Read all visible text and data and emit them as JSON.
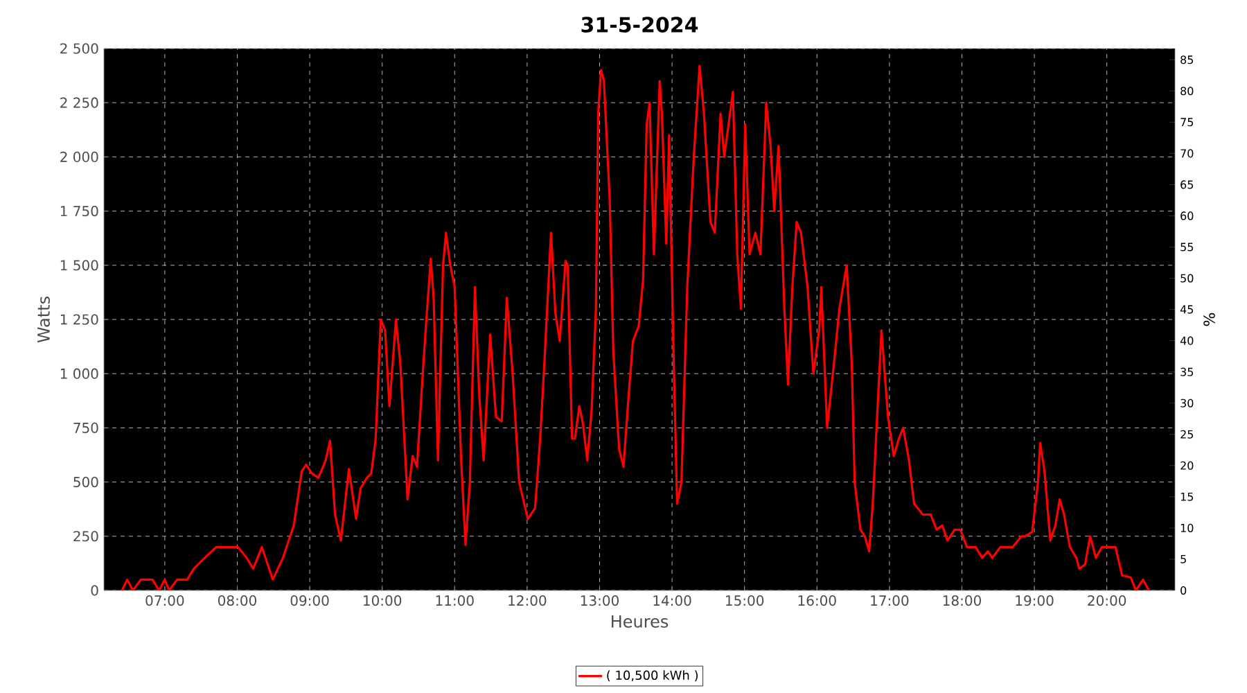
{
  "chart_data": {
    "type": "line",
    "title": "31-5-2024",
    "xlabel": "Heures",
    "ylabel": "Watts",
    "y2label": "%",
    "x": [
      6.41,
      6.48,
      6.56,
      6.67,
      6.83,
      6.92,
      7.0,
      7.06,
      7.17,
      7.31,
      7.4,
      7.55,
      7.71,
      7.88,
      8.01,
      8.13,
      8.22,
      8.34,
      8.49,
      8.63,
      8.78,
      8.89,
      8.95,
      9.03,
      9.12,
      9.22,
      9.28,
      9.35,
      9.43,
      9.54,
      9.64,
      9.7,
      9.79,
      9.85,
      9.91,
      9.98,
      10.04,
      10.1,
      10.19,
      10.25,
      10.35,
      10.42,
      10.48,
      10.56,
      10.61,
      10.67,
      10.71,
      10.77,
      10.84,
      10.88,
      10.94,
      11.0,
      11.09,
      11.15,
      11.21,
      11.28,
      11.34,
      11.4,
      11.49,
      11.57,
      11.65,
      11.72,
      11.8,
      11.89,
      12.01,
      12.11,
      12.18,
      12.24,
      12.33,
      12.39,
      12.45,
      12.53,
      12.56,
      12.62,
      12.66,
      12.72,
      12.77,
      12.83,
      12.89,
      12.95,
      12.98,
      13.02,
      13.06,
      13.14,
      13.19,
      13.27,
      13.33,
      13.39,
      13.46,
      13.54,
      13.6,
      13.65,
      13.69,
      13.75,
      13.83,
      13.86,
      13.92,
      13.96,
      14.02,
      14.07,
      14.13,
      14.21,
      14.3,
      14.38,
      14.44,
      14.53,
      14.59,
      14.67,
      14.72,
      14.84,
      14.9,
      14.95,
      15.01,
      15.07,
      15.15,
      15.22,
      15.3,
      15.36,
      15.41,
      15.47,
      15.55,
      15.6,
      15.66,
      15.72,
      15.78,
      15.87,
      15.95,
      16.03,
      16.06,
      16.14,
      16.22,
      16.31,
      16.41,
      16.48,
      16.52,
      16.6,
      16.66,
      16.72,
      16.77,
      16.89,
      16.98,
      17.06,
      17.13,
      17.19,
      17.27,
      17.34,
      17.46,
      17.57,
      17.65,
      17.73,
      17.8,
      17.9,
      17.98,
      18.07,
      18.19,
      18.28,
      18.36,
      18.42,
      18.53,
      18.63,
      18.7,
      18.82,
      18.87,
      18.97,
      19.05,
      19.08,
      19.14,
      19.22,
      19.29,
      19.35,
      19.41,
      19.49,
      19.58,
      19.62,
      19.7,
      19.77,
      19.85,
      19.93,
      20.12,
      20.21,
      20.33,
      20.4,
      20.5,
      20.58
    ],
    "series": [
      {
        "name": "( 10,500 kWh )",
        "color": "#ff0000",
        "values": [
          0,
          50,
          0,
          50,
          50,
          0,
          50,
          0,
          50,
          50,
          100,
          150,
          200,
          200,
          200,
          150,
          100,
          200,
          50,
          150,
          300,
          550,
          580,
          540,
          520,
          600,
          690,
          350,
          230,
          560,
          330,
          470,
          520,
          540,
          700,
          1250,
          1200,
          850,
          1250,
          1050,
          420,
          620,
          570,
          1000,
          1250,
          1530,
          1350,
          600,
          1500,
          1650,
          1500,
          1400,
          600,
          210,
          500,
          1400,
          900,
          600,
          1180,
          800,
          780,
          1350,
          1000,
          500,
          330,
          380,
          700,
          1060,
          1650,
          1280,
          1150,
          1520,
          1500,
          700,
          700,
          850,
          770,
          600,
          830,
          1300,
          2200,
          2400,
          2350,
          1800,
          1100,
          650,
          570,
          850,
          1150,
          1220,
          1430,
          2150,
          2250,
          1550,
          2350,
          2200,
          1600,
          2100,
          1100,
          400,
          500,
          1400,
          2000,
          2420,
          2200,
          1700,
          1650,
          2200,
          2000,
          2300,
          1550,
          1300,
          2150,
          1550,
          1650,
          1550,
          2250,
          2050,
          1750,
          2050,
          1300,
          950,
          1400,
          1700,
          1650,
          1400,
          1000,
          1200,
          1400,
          750,
          1000,
          1300,
          1500,
          1050,
          500,
          280,
          250,
          180,
          400,
          1200,
          800,
          620,
          700,
          750,
          600,
          400,
          350,
          350,
          280,
          300,
          230,
          280,
          280,
          200,
          200,
          150,
          180,
          150,
          200,
          200,
          200,
          250,
          250,
          270,
          500,
          680,
          550,
          230,
          300,
          420,
          350,
          200,
          150,
          100,
          120,
          250,
          150,
          200,
          200,
          70,
          60,
          0,
          50,
          0
        ]
      }
    ],
    "xlim": [
      6.16,
      20.94
    ],
    "xticks": [
      {
        "value": 7,
        "label": "07:00"
      },
      {
        "value": 8,
        "label": "08:00"
      },
      {
        "value": 9,
        "label": "09:00"
      },
      {
        "value": 10,
        "label": "10:00"
      },
      {
        "value": 11,
        "label": "11:00"
      },
      {
        "value": 12,
        "label": "12:00"
      },
      {
        "value": 13,
        "label": "13:00"
      },
      {
        "value": 14,
        "label": "14:00"
      },
      {
        "value": 15,
        "label": "15:00"
      },
      {
        "value": 16,
        "label": "16:00"
      },
      {
        "value": 17,
        "label": "17:00"
      },
      {
        "value": 18,
        "label": "18:00"
      },
      {
        "value": 19,
        "label": "19:00"
      },
      {
        "value": 20,
        "label": "20:00"
      }
    ],
    "ylim": [
      0,
      2500
    ],
    "yticks": [
      0,
      250,
      500,
      750,
      {
        "value": 1000,
        "label": "1 000"
      },
      {
        "value": 1250,
        "label": "1 250"
      },
      {
        "value": 1500,
        "label": "1 500"
      },
      {
        "value": 1750,
        "label": "1 750"
      },
      {
        "value": 2000,
        "label": "2 000"
      },
      {
        "value": 2250,
        "label": "2 250"
      },
      {
        "value": 2500,
        "label": "2 500"
      }
    ],
    "y2lim": [
      0,
      86.8
    ],
    "y2ticks": [
      0,
      5,
      10,
      15,
      20,
      25,
      30,
      35,
      40,
      45,
      50,
      55,
      60,
      65,
      70,
      75,
      80,
      85
    ],
    "grid": true,
    "legend": "bottom",
    "marker": "none",
    "line_style": "solid"
  }
}
